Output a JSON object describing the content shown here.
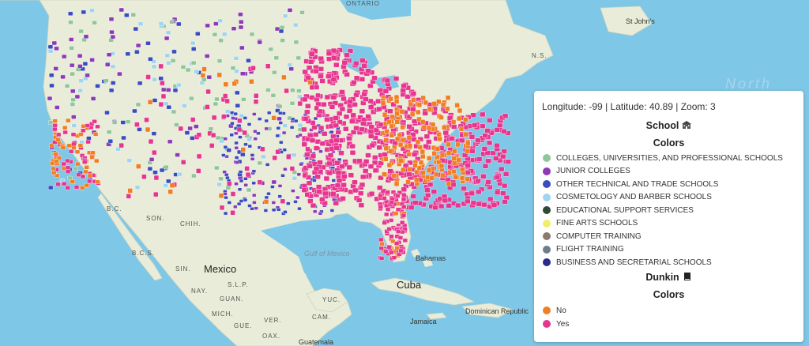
{
  "map": {
    "place_labels": [
      {
        "id": "ontario",
        "text": "ONTARIO",
        "kind": "small"
      },
      {
        "id": "stjohns",
        "text": "St John's",
        "kind": "city"
      },
      {
        "id": "ns",
        "text": "N.S.",
        "kind": "small"
      },
      {
        "id": "north",
        "text": "North",
        "kind": "ocean"
      },
      {
        "id": "bc",
        "text": "B.C.",
        "kind": "small"
      },
      {
        "id": "son",
        "text": "SON.",
        "kind": "small"
      },
      {
        "id": "chih",
        "text": "CHIH.",
        "kind": "small"
      },
      {
        "id": "bcs",
        "text": "B.C.S.",
        "kind": "small"
      },
      {
        "id": "sin",
        "text": "SIN.",
        "kind": "small"
      },
      {
        "id": "mexico",
        "text": "Mexico",
        "kind": "country"
      },
      {
        "id": "slp",
        "text": "S.L.P.",
        "kind": "small"
      },
      {
        "id": "nay",
        "text": "NAY.",
        "kind": "small"
      },
      {
        "id": "guan",
        "text": "GUAN.",
        "kind": "small"
      },
      {
        "id": "mich",
        "text": "MICH.",
        "kind": "small"
      },
      {
        "id": "gue",
        "text": "GUE.",
        "kind": "small"
      },
      {
        "id": "ver",
        "text": "VER.",
        "kind": "small"
      },
      {
        "id": "oax",
        "text": "OAX.",
        "kind": "small"
      },
      {
        "id": "yuc",
        "text": "YUC.",
        "kind": "small"
      },
      {
        "id": "cam",
        "text": "CAM.",
        "kind": "small"
      },
      {
        "id": "gulf",
        "text": "Gulf of Mexico",
        "kind": "sea"
      },
      {
        "id": "bahamas",
        "text": "Bahamas",
        "kind": "city"
      },
      {
        "id": "cuba",
        "text": "Cuba",
        "kind": "country"
      },
      {
        "id": "jamaica",
        "text": "Jamaica",
        "kind": "city"
      },
      {
        "id": "dominican",
        "text": "Dominican Republic",
        "kind": "city"
      },
      {
        "id": "guatemala",
        "text": "Guatemala",
        "kind": "city"
      }
    ]
  },
  "legend": {
    "coords_text": "Longitude: -99 | Latitude: 40.89 | Zoom: 3",
    "school_title": "School",
    "school_icon": "school-icon",
    "school_colors_title": "Colors",
    "school_items": [
      {
        "label": "COLLEGES, UNIVERSITIES, AND PROFESSIONAL SCHOOLS",
        "color": "#8fc79a"
      },
      {
        "label": "JUNIOR COLLEGES",
        "color": "#8e3ab8"
      },
      {
        "label": "OTHER TECHNICAL AND TRADE SCHOOLS",
        "color": "#3b4cc0"
      },
      {
        "label": "COSMETOLOGY AND BARBER SCHOOLS",
        "color": "#9fd5ef"
      },
      {
        "label": "EDUCATIONAL SUPPORT SERVICES",
        "color": "#2f4a36"
      },
      {
        "label": "FINE ARTS SCHOOLS",
        "color": "#f2ee6a"
      },
      {
        "label": "COMPUTER TRAINING",
        "color": "#8a7a72"
      },
      {
        "label": "FLIGHT TRAINING",
        "color": "#6e7d8a"
      },
      {
        "label": "BUSINESS AND SECRETARIAL SCHOOLS",
        "color": "#2a2a8c"
      }
    ],
    "dunkin_title": "Dunkin",
    "dunkin_icon": "book-icon",
    "dunkin_colors_title": "Colors",
    "dunkin_items": [
      {
        "label": "No",
        "color": "#f07f24"
      },
      {
        "label": "Yes",
        "color": "#e7368f"
      }
    ]
  }
}
